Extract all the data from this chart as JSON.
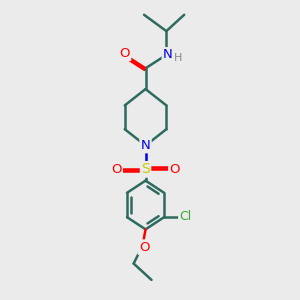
{
  "bg_color": "#ebebeb",
  "bond_color": "#2d6b5e",
  "bond_width": 1.8,
  "atom_colors": {
    "O": "#ff0000",
    "N": "#0000ee",
    "S": "#cccc00",
    "Cl": "#33aa33",
    "C": "#2d6b5e",
    "H": "#888888"
  },
  "font_size": 9
}
